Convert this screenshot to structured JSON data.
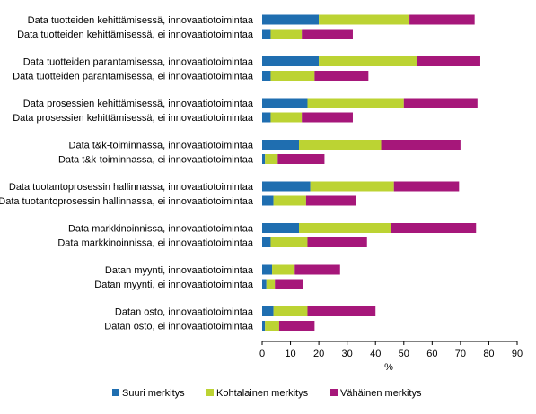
{
  "chart_data": {
    "type": "bar",
    "orientation": "horizontal",
    "stacked": true,
    "categories": [
      "Data tuotteiden kehittämisessä, innovaatiotoimintaa",
      "Data tuotteiden kehittämisessä, ei innovaatiotoimintaa",
      "Data tuotteiden parantamisessa, innovaatiotoimintaa",
      "Data tuotteiden parantamisessa, ei innovaatiotoimintaa",
      "Data prosessien kehittämisessä, innovaatiotoimintaa",
      "Data prosessien kehittämisessä, ei innovaatiotoimintaa",
      "Data t&k-toiminnassa, innovaatiotoimintaa",
      "Data t&k-toiminnassa, ei innovaatiotoimintaa",
      "Data tuotantoprosessin hallinnassa, innovaatiotoimintaa",
      "Data tuotantoprosessin hallinnassa, ei innovaatiotoimintaa",
      "Data markkinoinnissa, innovaatiotoimintaa",
      "Data markkinoinnissa, ei innovaatiotoimintaa",
      "Datan myynti, innovaatiotoimintaa",
      "Datan myynti, ei innovaatiotoimintaa",
      "Datan osto, innovaatiotoimintaa",
      "Datan osto, ei innovaatiotoimintaa"
    ],
    "series": [
      {
        "name": "Suuri merkitys",
        "color": "#1f6eb0",
        "values": [
          20,
          3,
          20,
          3,
          16,
          3,
          13,
          1,
          17,
          4,
          13,
          3,
          3.5,
          1.5,
          4,
          1
        ]
      },
      {
        "name": "Kohtalainen merkitys",
        "color": "#bcd333",
        "values": [
          32,
          11,
          34.5,
          15.5,
          34,
          11,
          29,
          4.5,
          29.5,
          11.5,
          32.5,
          13,
          8,
          3,
          12,
          5
        ]
      },
      {
        "name": "Vähäinen merkitys",
        "color": "#a6177a",
        "values": [
          23,
          18,
          22.5,
          19,
          26,
          18,
          28,
          16.5,
          23,
          17.5,
          30,
          21,
          16,
          10,
          24,
          12.5
        ]
      }
    ],
    "xlabel": "%",
    "xlim": [
      0,
      90
    ],
    "xticks": [
      0,
      10,
      20,
      30,
      40,
      50,
      60,
      70,
      80,
      90
    ],
    "grid": false,
    "legend_position": "bottom"
  }
}
